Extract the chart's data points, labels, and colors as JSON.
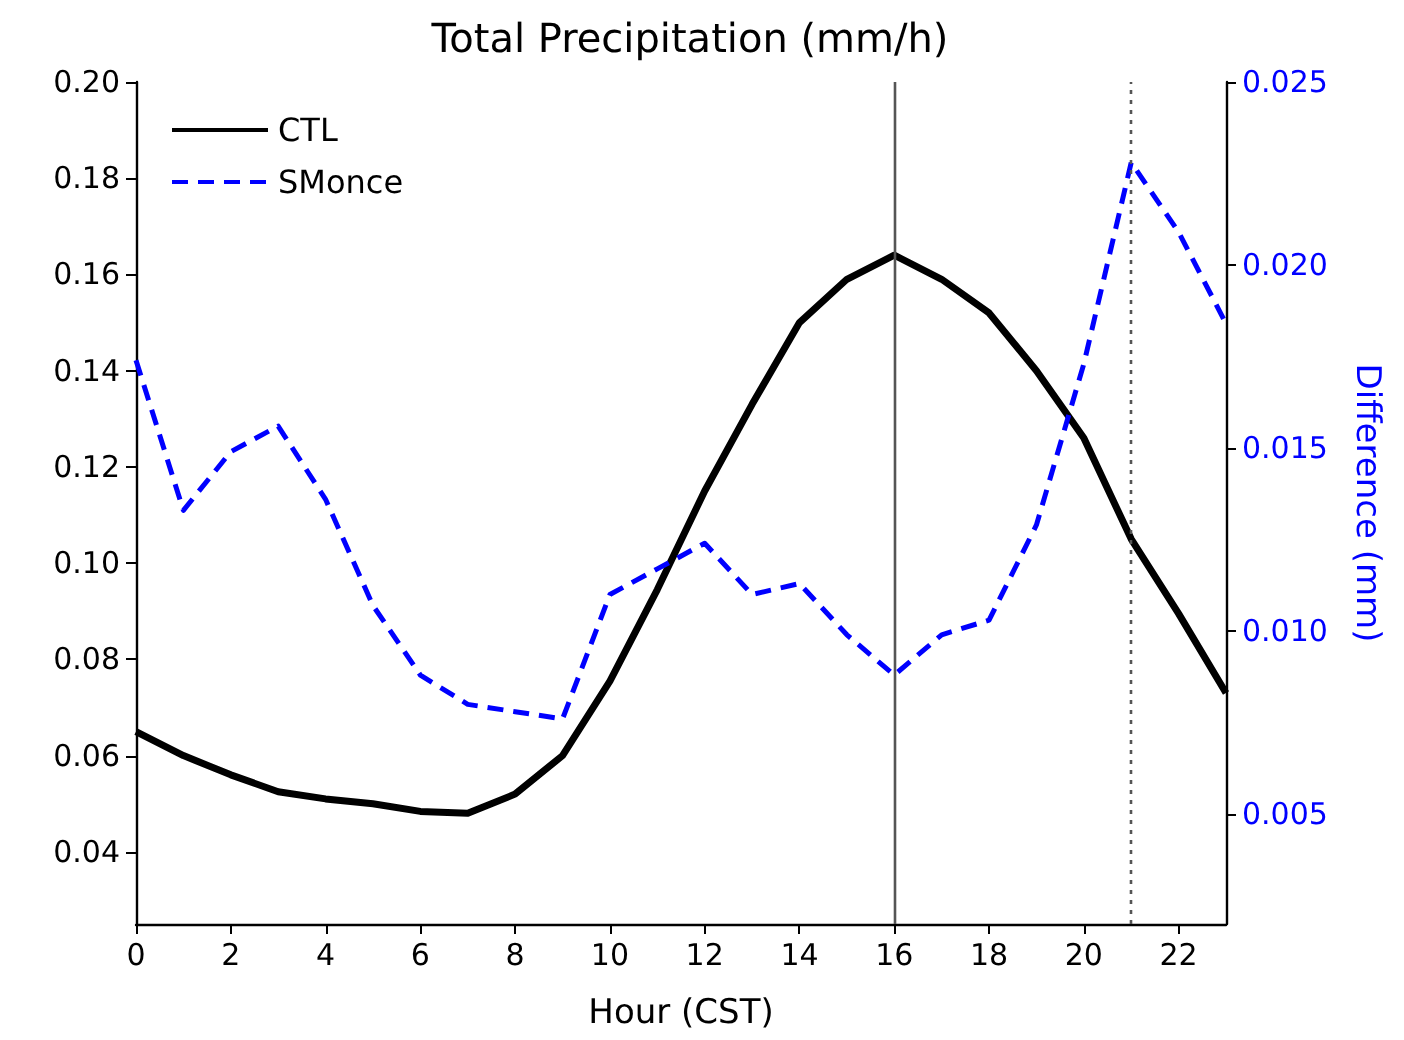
{
  "chart_data": {
    "type": "line",
    "title": "Total Precipitation (mm/h)",
    "xlabel": "Hour (CST)",
    "y2label": "Difference (mm)",
    "x": [
      0,
      1,
      2,
      3,
      4,
      5,
      6,
      7,
      8,
      9,
      10,
      11,
      12,
      13,
      14,
      15,
      16,
      17,
      18,
      19,
      20,
      21,
      22,
      23
    ],
    "series": [
      {
        "name": "CTL",
        "color": "#000000",
        "line_style": "solid",
        "values": [
          0.065,
          0.06,
          0.056,
          0.0525,
          0.051,
          0.05,
          0.0484,
          0.048,
          0.052,
          0.06,
          0.0755,
          0.0945,
          0.115,
          0.133,
          0.15,
          0.159,
          0.164,
          0.159,
          0.152,
          0.14,
          0.126,
          0.105,
          0.0895,
          0.073
        ]
      },
      {
        "name": "SMonce",
        "color": "#0000ff",
        "line_style": "dashed",
        "axis": "y2",
        "values": [
          0.0174,
          0.0133,
          0.0149,
          0.0156,
          0.0136,
          0.0107,
          0.0088,
          0.008,
          0.0078,
          0.0076,
          0.011,
          0.0117,
          0.0124,
          0.011,
          0.0113,
          0.0099,
          0.0088,
          0.0099,
          0.0103,
          0.0129,
          0.0173,
          0.0228,
          0.0209,
          0.0184
        ]
      }
    ],
    "xlim": [
      0,
      23
    ],
    "xticks": [
      0,
      2,
      4,
      6,
      8,
      10,
      12,
      14,
      16,
      18,
      20,
      22
    ],
    "ylim": [
      0.025,
      0.2
    ],
    "yticks": [
      0.04,
      0.06,
      0.08,
      {
        "value": 0.1,
        "label": "0.10"
      },
      0.12,
      0.14,
      0.16,
      0.18,
      {
        "value": 0.2,
        "label": "0.20"
      }
    ],
    "y2lim": [
      0.002,
      0.025
    ],
    "y2ticks": [
      0.005,
      {
        "value": 0.01,
        "label": "0.010"
      },
      0.015,
      {
        "value": 0.02,
        "label": "0.020"
      },
      0.025
    ],
    "ref_lines": [
      {
        "axis": "x",
        "value": 16,
        "color": "#555555",
        "line_style": "solid"
      },
      {
        "axis": "x",
        "value": 21,
        "color": "#555555",
        "line_style": "dotted"
      }
    ],
    "marker": "none",
    "grid": false,
    "legend": "top left"
  }
}
